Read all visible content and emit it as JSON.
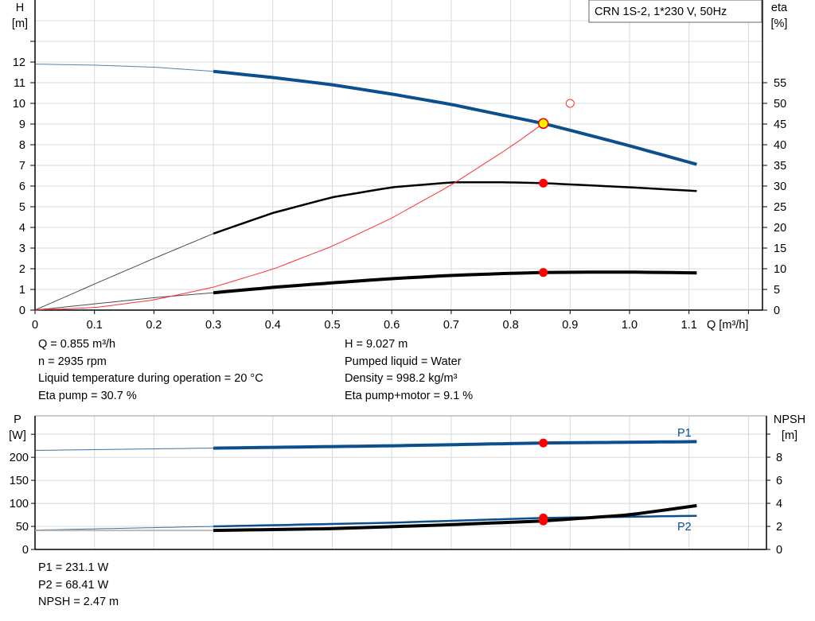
{
  "chart_data": [
    {
      "type": "line",
      "title": "CRN 1S-2, 1*230 V, 50Hz",
      "xlabel": "Q [m³/h]",
      "xlim": [
        0,
        1.2
      ],
      "xticks": [
        "0",
        "0.1",
        "0.2",
        "0.3",
        "0.4",
        "0.5",
        "0.6",
        "0.7",
        "0.8",
        "0.9",
        "1.0",
        "1.1"
      ],
      "ylabel_left": [
        "H",
        "[m]"
      ],
      "ylim_left": [
        0,
        15
      ],
      "yticks_left": [
        "0",
        "1",
        "2",
        "3",
        "4",
        "5",
        "6",
        "7",
        "8",
        "9",
        "10",
        "11",
        "12"
      ],
      "ylabel_right": [
        "eta",
        "[%]"
      ],
      "ylim_right": [
        0,
        75
      ],
      "yticks_right": [
        "0",
        "5",
        "10",
        "15",
        "20",
        "25",
        "30",
        "35",
        "40",
        "45",
        "50",
        "55"
      ],
      "grid": true,
      "series": [
        {
          "axis": "left",
          "color": "#0b4f8c",
          "x": [
            0,
            0.1,
            0.2,
            0.3,
            0.4,
            0.5,
            0.6,
            0.7,
            0.8,
            0.855,
            0.9,
            1.0,
            1.113
          ],
          "y": [
            11.9,
            11.85,
            11.75,
            11.55,
            11.25,
            10.9,
            10.45,
            9.95,
            9.35,
            9.03,
            8.7,
            7.95,
            7.05
          ]
        },
        {
          "axis": "right",
          "color": "#000000",
          "x": [
            0,
            0.1,
            0.2,
            0.3,
            0.4,
            0.5,
            0.6,
            0.7,
            0.8,
            0.855,
            0.9,
            1.0,
            1.113
          ],
          "y": [
            0,
            6.3,
            12.5,
            18.5,
            23.5,
            27.3,
            29.7,
            30.9,
            30.9,
            30.7,
            30.4,
            29.7,
            28.8
          ]
        },
        {
          "axis": "right",
          "color": "#000000",
          "x": [
            0,
            0.1,
            0.2,
            0.3,
            0.4,
            0.5,
            0.6,
            0.7,
            0.8,
            0.855,
            0.9,
            1.0,
            1.113
          ],
          "y": [
            0,
            1.5,
            3,
            4.2,
            5.5,
            6.6,
            7.6,
            8.4,
            8.9,
            9.1,
            9.15,
            9.2,
            9.0
          ]
        },
        {
          "axis": "left",
          "color": "#ff3030",
          "x": [
            0,
            0.1,
            0.2,
            0.3,
            0.4,
            0.5,
            0.6,
            0.7,
            0.8,
            0.855
          ],
          "y": [
            0,
            0.12,
            0.49,
            1.11,
            1.98,
            3.09,
            4.45,
            6.05,
            7.9,
            9.027
          ]
        }
      ],
      "duty_point": {
        "q": 0.855,
        "h": 9.027,
        "eta_pump": 30.7,
        "eta_total": 9.1
      },
      "requested_point": {
        "q": 0.9,
        "h": 10
      }
    },
    {
      "type": "line",
      "xlim": [
        0,
        1.2
      ],
      "ylabel_left": [
        "P",
        "[W]"
      ],
      "ylim_left": [
        0,
        290
      ],
      "yticks_left": [
        "0",
        "50",
        "100",
        "150",
        "200"
      ],
      "ylabel_right": [
        "NPSH",
        "[m]"
      ],
      "ylim_right": [
        0,
        10
      ],
      "yticks_right": [
        "0",
        "2",
        "4",
        "6",
        "8"
      ],
      "grid": true,
      "series": [
        {
          "name": "P1",
          "axis": "left",
          "color": "#0b4f8c",
          "x": [
            0,
            0.3,
            0.6,
            0.855,
            1.113
          ],
          "y": [
            215,
            220,
            225,
            231.1,
            234
          ]
        },
        {
          "name": "P2",
          "axis": "left",
          "color": "#0b4f8c",
          "x": [
            0,
            0.3,
            0.6,
            0.855,
            1.113
          ],
          "y": [
            42,
            50,
            58,
            68.4,
            73
          ]
        },
        {
          "axis": "right",
          "color": "#000000",
          "x": [
            0,
            0.3,
            0.5,
            0.7,
            0.855,
            1.0,
            1.113
          ],
          "y": [
            1.65,
            1.65,
            1.8,
            2.15,
            2.47,
            3.0,
            3.8
          ]
        }
      ]
    }
  ],
  "info_top_left": [
    "Q = 0.855 m³/h",
    "n = 2935 rpm",
    "Liquid temperature during operation = 20 °C",
    "Eta pump = 30.7 %"
  ],
  "info_top_right": [
    "H = 9.027 m",
    "Pumped liquid = Water",
    "Density = 998.2 kg/m³",
    "Eta pump+motor = 9.1 %"
  ],
  "info_bottom": [
    "P1 = 231.1 W",
    "P2 = 68.41 W",
    "NPSH = 2.47 m"
  ]
}
